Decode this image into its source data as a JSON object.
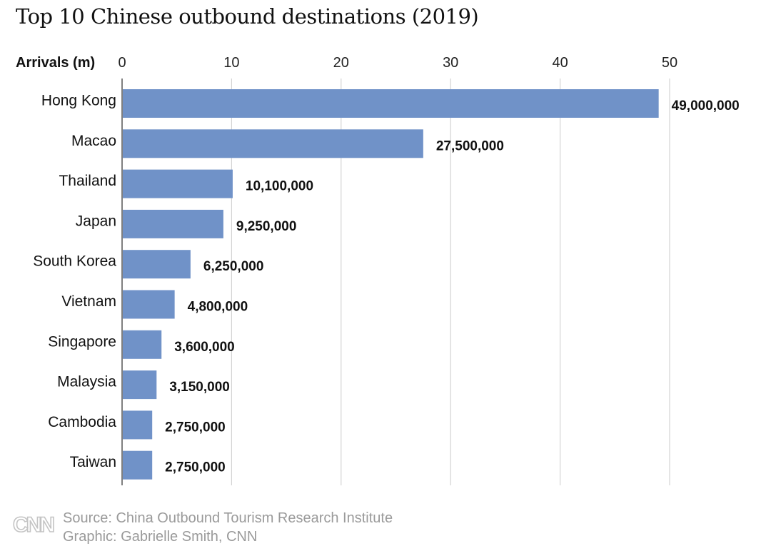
{
  "chart_data": {
    "type": "bar",
    "orientation": "horizontal",
    "title": "Top 10 Chinese outbound destinations (2019)",
    "xlabel": "Arrivals (m)",
    "ylabel": "",
    "xlim": [
      0,
      50
    ],
    "xticks": [
      0,
      10,
      20,
      30,
      40,
      50
    ],
    "xtick_labels": [
      "0",
      "10",
      "20",
      "30",
      "40",
      "50"
    ],
    "grid": true,
    "axis_position": "top",
    "color": "#7092c8",
    "categories": [
      "Hong Kong",
      "Macao",
      "Thailand",
      "Japan",
      "South Korea",
      "Vietnam",
      "Singapore",
      "Malaysia",
      "Cambodia",
      "Taiwan"
    ],
    "values": [
      49,
      27.5,
      10.1,
      9.25,
      6.25,
      4.8,
      3.6,
      3.15,
      2.75,
      2.75
    ],
    "value_labels": [
      "49,000,000",
      "27,500,000",
      "10,100,000",
      "9,250,000",
      "6,250,000",
      "4,800,000",
      "3,600,000",
      "3,150,000",
      "2,750,000",
      "2,750,000"
    ]
  },
  "footer": {
    "source": "Source: China Outbound Tourism Research Institute",
    "graphic": "Graphic: Gabrielle Smith, CNN",
    "logo_text": "CNN"
  }
}
